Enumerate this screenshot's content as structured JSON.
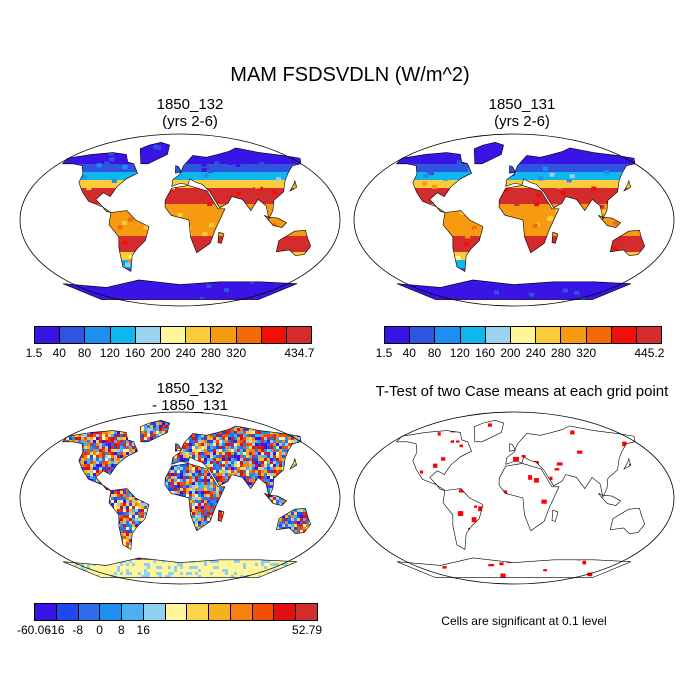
{
  "title": "MAM FSDSVDLN (W/m^2)",
  "chart_data": [
    {
      "type": "heatmap",
      "panel": "top-left",
      "title_line1": "1850_132",
      "title_line2": "(yrs 2-6)",
      "colorbar": {
        "labels": [
          "1.5",
          "40",
          "80",
          "120",
          "160",
          "200",
          "240",
          "280",
          "320",
          "434.7"
        ],
        "colors": [
          "#3a14e6",
          "#2f55e0",
          "#1e8ff0",
          "#10b7ee",
          "#9ad2ef",
          "#fff59a",
          "#fbcc3a",
          "#f69a12",
          "#f56a08",
          "#f01008",
          "#d42c2c"
        ]
      }
    },
    {
      "type": "heatmap",
      "panel": "top-right",
      "title_line1": "1850_131",
      "title_line2": "(yrs 2-6)",
      "colorbar": {
        "labels": [
          "1.5",
          "40",
          "80",
          "120",
          "160",
          "200",
          "240",
          "280",
          "320",
          "445.2"
        ],
        "colors": [
          "#3a14e6",
          "#2f55e0",
          "#1e8ff0",
          "#10b7ee",
          "#9ad2ef",
          "#fff59a",
          "#fbcc3a",
          "#f69a12",
          "#f56a08",
          "#f01008",
          "#d42c2c"
        ]
      }
    },
    {
      "type": "heatmap",
      "panel": "bottom-left",
      "title_line1": "1850_132",
      "title_line2": "- 1850_131",
      "colorbar": {
        "labels": [
          "-60.06",
          "-16",
          "-8",
          "0",
          "8",
          "16",
          "52.79"
        ],
        "colors": [
          "#3a14e6",
          "#1f48f0",
          "#2f6ee8",
          "#1e8ff0",
          "#4ab0f0",
          "#8fd0f3",
          "#fff59a",
          "#fbd44a",
          "#f7b020",
          "#f68010",
          "#f24e0a",
          "#e01010",
          "#d42c2c"
        ]
      }
    },
    {
      "type": "heatmap",
      "panel": "bottom-right",
      "title": "T-Test of two Case means at each grid point",
      "note": "Cells are significant at 0.1 level",
      "significant_color": "#ff0000"
    }
  ]
}
